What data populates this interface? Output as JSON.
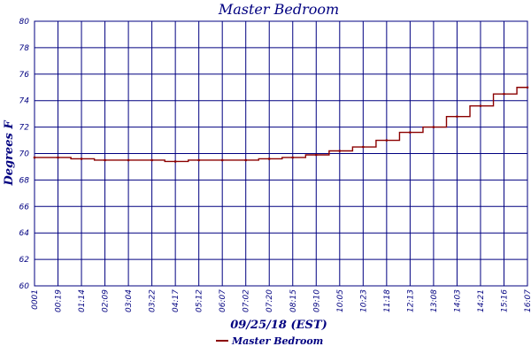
{
  "chart_data": {
    "type": "line",
    "title": "Master Bedroom",
    "xlabel": "09/25/18 (EST)",
    "ylabel": "Degrees F",
    "ylim": [
      60,
      80
    ],
    "y_ticks": [
      "60",
      "62",
      "64",
      "66",
      "68",
      "70",
      "72",
      "74",
      "76",
      "78",
      "80"
    ],
    "x_ticks": [
      "0001",
      "00:19",
      "01:14",
      "02:09",
      "03:04",
      "03:22",
      "04:17",
      "05:12",
      "06:07",
      "07:02",
      "07:20",
      "08:15",
      "09:10",
      "10:05",
      "10:23",
      "11:18",
      "12:13",
      "13:08",
      "14:03",
      "14:21",
      "15:16",
      "16:07"
    ],
    "grid": true,
    "legend_position": "bottom",
    "series": [
      {
        "name": "Master Bedroom",
        "color": "#8b0000",
        "x": [
          "0001",
          "00:19",
          "01:14",
          "02:09",
          "03:04",
          "03:22",
          "04:17",
          "05:12",
          "06:07",
          "07:02",
          "07:20",
          "08:15",
          "09:10",
          "10:05",
          "10:23",
          "11:18",
          "12:13",
          "13:08",
          "14:03",
          "14:21",
          "15:16",
          "16:07"
        ],
        "values": [
          69.7,
          69.7,
          69.6,
          69.5,
          69.5,
          69.5,
          69.4,
          69.5,
          69.5,
          69.5,
          69.6,
          69.7,
          69.9,
          70.2,
          70.5,
          71.0,
          71.6,
          72.0,
          72.8,
          73.6,
          74.5,
          75.0
        ]
      }
    ],
    "legend": [
      {
        "label": "Master Bedroom",
        "color": "#8b0000"
      }
    ]
  }
}
